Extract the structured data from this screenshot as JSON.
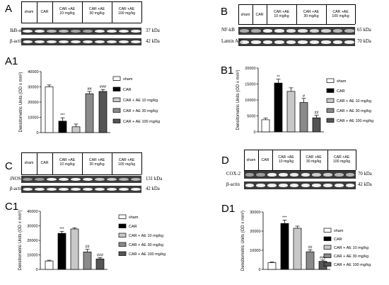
{
  "panels": [
    {
      "letter": "A",
      "sub_letter": "A1",
      "groups": [
        "sham",
        "CAR",
        "CAR +AE\n10 mg/kg",
        "CAR +AE\n30 mg/kg",
        "CAR +AE\n100 mg/kg"
      ],
      "blots": [
        {
          "label": "IkB-α",
          "kda": "37 kDa"
        },
        {
          "label": "β-actin",
          "kda": "42 kDa"
        }
      ]
    },
    {
      "letter": "B",
      "sub_letter": "B1",
      "groups": [
        "sham",
        "CAR",
        "CAR +AE\n10 mg/kg",
        "CAR +AE\n30 mg/kg",
        "CAR +AE\n100 mg/kg"
      ],
      "blots": [
        {
          "label": "NF-kB",
          "kda": "65 kDa"
        },
        {
          "label": "Lamin A/C",
          "kda": "70 kDa"
        }
      ]
    },
    {
      "letter": "C",
      "sub_letter": "C1",
      "groups": [
        "sham",
        "CAR",
        "CAR +AE\n10 mg/kg",
        "CAR +AE\n30 mg/kg",
        "CAR +AE\n100 mg/kg"
      ],
      "blots": [
        {
          "label": "iNOS",
          "kda": "131 kDa"
        },
        {
          "label": "β-actin",
          "kda": "42 kDa"
        }
      ]
    },
    {
      "letter": "D",
      "sub_letter": "D1",
      "groups": [
        "sham",
        "CAR",
        "CAR +AE\n10 mg/kg",
        "CAR +AE\n30 mg/kg",
        "CAR +AE\n100 mg/kg"
      ],
      "blots": [
        {
          "label": "COX-2",
          "kda": "70 kDa"
        },
        {
          "label": "β-actin",
          "kda": "42 kDa"
        }
      ]
    }
  ],
  "chart_data": [
    {
      "type": "bar",
      "panel": "A1",
      "ylabel": "Densitometric Units (OD x mm²)",
      "ylim": [
        0,
        40000
      ],
      "yticks": [
        0,
        10000,
        20000,
        30000,
        40000
      ],
      "categories": [
        "sham",
        "CAR",
        "CAR + AE 10 mg/kg",
        "CAR + AE 30 mg/kg",
        "CAR + AE 100 mg/kg"
      ],
      "values": [
        30000,
        7500,
        3800,
        25500,
        27000
      ],
      "errors": [
        1200,
        2200,
        1800,
        1500,
        1300
      ],
      "annotations": [
        "",
        "***",
        "",
        "##",
        "###"
      ],
      "fills": [
        "#ffffff",
        "#000000",
        "#c8c8c8",
        "#8a8a8a",
        "#555555"
      ],
      "legend": [
        "sham",
        "CAR",
        "CAR + AE 10 mg/kg",
        "CAR + AE 30 mg/kg",
        "CAR + AE 100 mg/kg"
      ]
    },
    {
      "type": "bar",
      "panel": "B1",
      "ylabel": "Densitometric Units (OD x mm²)",
      "ylim": [
        0,
        20000
      ],
      "yticks": [
        0,
        5000,
        10000,
        15000,
        20000
      ],
      "categories": [
        "sham",
        "CAR",
        "CAR + AE 10 mg/kg",
        "CAR + AE 30 mg/kg",
        "CAR + AE 100 mg/kg"
      ],
      "values": [
        3800,
        15300,
        12700,
        9200,
        4400
      ],
      "errors": [
        500,
        1200,
        1100,
        1300,
        800
      ],
      "annotations": [
        "",
        "**",
        "",
        "#",
        "##"
      ],
      "fills": [
        "#ffffff",
        "#000000",
        "#c8c8c8",
        "#8a8a8a",
        "#555555"
      ],
      "legend": [
        "sham",
        "CAR",
        "CAR + AE 10 mg/kg",
        "CAR + AE 30 mg/kg",
        "CAR + AE 100 mg/kg"
      ]
    },
    {
      "type": "bar",
      "panel": "C1",
      "ylabel": "Densitometric Units (OD x mm²)",
      "ylim": [
        0,
        40000
      ],
      "yticks": [
        0,
        10000,
        20000,
        30000,
        40000
      ],
      "categories": [
        "sham",
        "CAR",
        "CAR + AE 10 mg/kg",
        "CAR + AE 30 mg/kg",
        "CAR + AE 100 mg/kg"
      ],
      "values": [
        5800,
        24800,
        27800,
        12000,
        7200
      ],
      "errors": [
        500,
        1400,
        800,
        1800,
        900
      ],
      "annotations": [
        "",
        "***",
        "",
        "##",
        "###"
      ],
      "fills": [
        "#ffffff",
        "#000000",
        "#c8c8c8",
        "#8a8a8a",
        "#555555"
      ],
      "legend": [
        "sham",
        "CAR",
        "CAR + AE 10 mg/kg",
        "CAR + AE 30 mg/kg",
        "CAR + AE 100 mg/kg"
      ]
    },
    {
      "type": "bar",
      "panel": "D1",
      "ylabel": "Densitometric Units (OD x mm²)",
      "ylim": [
        0,
        30000
      ],
      "yticks": [
        0,
        10000,
        20000,
        30000
      ],
      "categories": [
        "sham",
        "CAR",
        "CAR + AE 10 mg/kg",
        "CAR + AE 30 mg/kg",
        "CAR + AE 100 mg/kg"
      ],
      "values": [
        3500,
        24000,
        21500,
        9200,
        4200
      ],
      "errors": [
        400,
        1800,
        1100,
        1000,
        700
      ],
      "annotations": [
        "",
        "***",
        "",
        "##",
        "###"
      ],
      "fills": [
        "#ffffff",
        "#000000",
        "#c8c8c8",
        "#8a8a8a",
        "#555555"
      ],
      "legend": [
        "sham",
        "CAR",
        "CAR + AE 10 mg/kg",
        "CAR + AE 30 mg/kg",
        "CAR + AE 100 mg/kg"
      ]
    }
  ]
}
